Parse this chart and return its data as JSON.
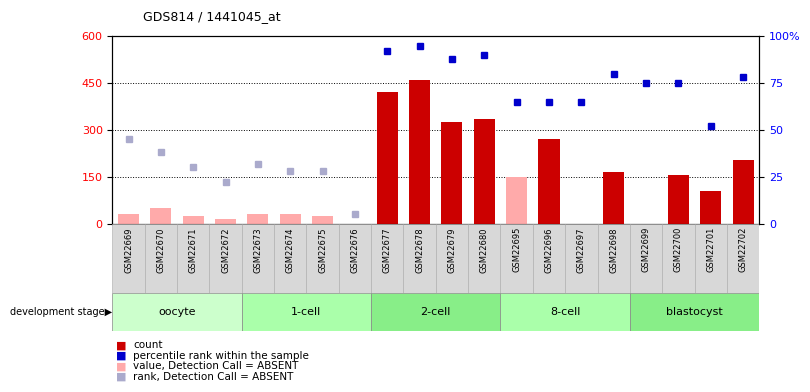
{
  "title": "GDS814 / 1441045_at",
  "samples": [
    "GSM22669",
    "GSM22670",
    "GSM22671",
    "GSM22672",
    "GSM22673",
    "GSM22674",
    "GSM22675",
    "GSM22676",
    "GSM22677",
    "GSM22678",
    "GSM22679",
    "GSM22680",
    "GSM22695",
    "GSM22696",
    "GSM22697",
    "GSM22698",
    "GSM22699",
    "GSM22700",
    "GSM22701",
    "GSM22702"
  ],
  "count_values": [
    null,
    null,
    null,
    null,
    null,
    null,
    null,
    null,
    420,
    460,
    325,
    335,
    null,
    270,
    null,
    165,
    null,
    155,
    105,
    205
  ],
  "count_absent": [
    30,
    50,
    25,
    15,
    30,
    30,
    25,
    null,
    null,
    null,
    null,
    null,
    150,
    null,
    null,
    null,
    null,
    null,
    null,
    null
  ],
  "rank_values": [
    null,
    null,
    null,
    null,
    null,
    null,
    null,
    null,
    92,
    95,
    88,
    90,
    65,
    65,
    65,
    80,
    75,
    75,
    52,
    78
  ],
  "rank_absent": [
    45,
    38,
    30,
    22,
    32,
    28,
    28,
    5,
    null,
    null,
    null,
    null,
    null,
    null,
    null,
    null,
    null,
    null,
    null,
    null
  ],
  "stages": [
    {
      "label": "oocyte",
      "start": 0,
      "end": 4
    },
    {
      "label": "1-cell",
      "start": 4,
      "end": 8
    },
    {
      "label": "2-cell",
      "start": 8,
      "end": 12
    },
    {
      "label": "8-cell",
      "start": 12,
      "end": 16
    },
    {
      "label": "blastocyst",
      "start": 16,
      "end": 20
    }
  ],
  "stage_face_colors": [
    "#ccffcc",
    "#aaffaa",
    "#88ee88",
    "#aaffaa",
    "#88ee88"
  ],
  "ylim_left": [
    0,
    600
  ],
  "ylim_right": [
    0,
    100
  ],
  "yticks_left": [
    0,
    150,
    300,
    450,
    600
  ],
  "yticks_right": [
    0,
    25,
    50,
    75,
    100
  ],
  "bar_color": "#cc0000",
  "bar_absent_color": "#ffaaaa",
  "rank_color": "#0000cc",
  "rank_absent_color": "#aaaacc",
  "legend_items": [
    {
      "color": "#cc0000",
      "label": "count"
    },
    {
      "color": "#0000cc",
      "label": "percentile rank within the sample"
    },
    {
      "color": "#ffaaaa",
      "label": "value, Detection Call = ABSENT"
    },
    {
      "color": "#aaaacc",
      "label": "rank, Detection Call = ABSENT"
    }
  ]
}
